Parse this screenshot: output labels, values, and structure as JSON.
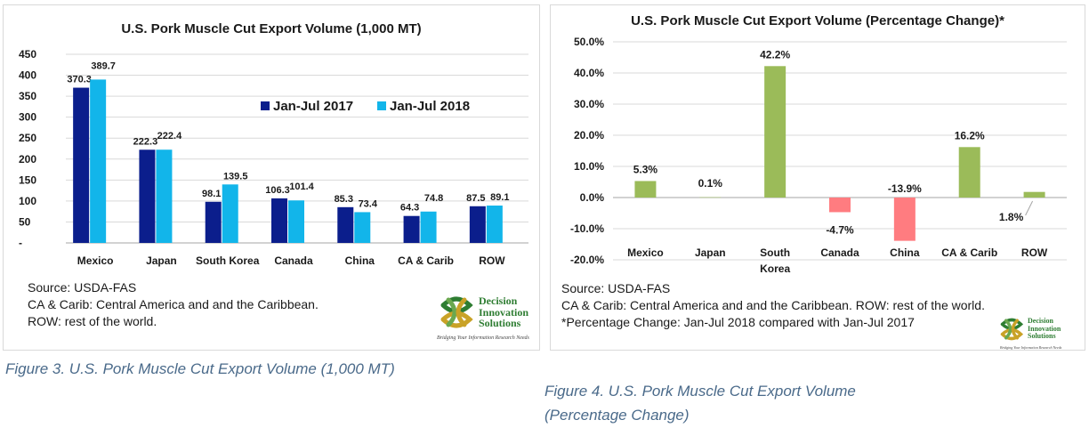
{
  "figure3": {
    "title": "U.S. Pork Muscle Cut Export Volume (1,000 MT)",
    "notes": [
      "Source: USDA-FAS",
      "CA & Carib: Central America and and the Caribbean.",
      "ROW: rest of the world."
    ],
    "caption": "Figure 3. U.S. Pork Muscle Cut Export Volume (1,000 MT)"
  },
  "figure4": {
    "title": "U.S. Pork Muscle Cut Export Volume (Percentage Change)*",
    "notes": [
      "Source: USDA-FAS",
      "CA & Carib: Central America and and the Caribbean. ROW: rest of the world.",
      "*Percentage Change: Jan-Jul 2018 compared with Jan-Jul 2017"
    ],
    "caption_line1": "Figure 4. U.S. Pork Muscle Cut Export Volume",
    "caption_line2": "(Percentage Change)"
  },
  "logo": {
    "line1": "Decision",
    "line2": "Innovation",
    "line3": "Solutions",
    "tagline": "Bridging Your Information Research Needs",
    "color": "#2e7d32"
  },
  "chart_data": [
    {
      "type": "bar",
      "title": "U.S. Pork Muscle Cut Export Volume (1,000 MT)",
      "categories": [
        "Mexico",
        "Japan",
        "South Korea",
        "Canada",
        "China",
        "CA & Carib",
        "ROW"
      ],
      "series": [
        {
          "name": "Jan-Jul 2017",
          "values": [
            370.3,
            222.3,
            98.1,
            106.3,
            85.3,
            64.3,
            87.5
          ],
          "labels": [
            "370.3",
            "222.3",
            "98.1",
            "106.3",
            "85.3",
            "64.3",
            "87.5"
          ],
          "color": "#0b1e8c"
        },
        {
          "name": "Jan-Jul 2018",
          "values": [
            389.7,
            222.4,
            139.5,
            101.4,
            73.4,
            74.8,
            89.1
          ],
          "labels": [
            "389.7",
            "222.4",
            "139.5",
            "101.4",
            "73.4",
            "74.8",
            "89.1"
          ],
          "color": "#12b5ea"
        }
      ],
      "ylim": [
        0,
        450
      ],
      "yticks": [
        "-",
        "50",
        "100",
        "150",
        "200",
        "250",
        "300",
        "350",
        "400",
        "450"
      ],
      "grid": true,
      "legend": "top-right"
    },
    {
      "type": "bar",
      "title": "U.S. Pork Muscle Cut Export Volume (Percentage Change)*",
      "categories": [
        "Mexico",
        "Japan",
        "South Korea",
        "Canada",
        "China",
        "CA & Carib",
        "ROW"
      ],
      "values": [
        5.3,
        0.1,
        42.2,
        -4.7,
        -13.9,
        16.2,
        1.8
      ],
      "labels": [
        "5.3%",
        "0.1%",
        "42.2%",
        "-4.7%",
        "-13.9%",
        "16.2%",
        "1.8%"
      ],
      "positive_color": "#9bbb59",
      "negative_color": "#ff7c80",
      "ylim": [
        -20,
        50
      ],
      "yticks": [
        "-20.0%",
        "-10.0%",
        "0.0%",
        "10.0%",
        "20.0%",
        "30.0%",
        "40.0%",
        "50.0%"
      ],
      "grid": true
    }
  ]
}
